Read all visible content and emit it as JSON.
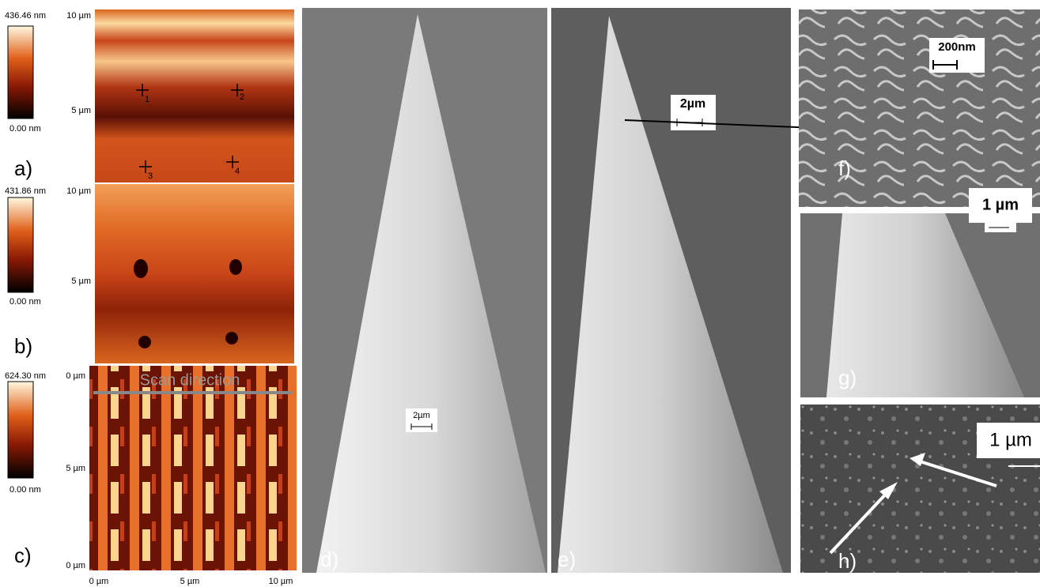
{
  "panels": [
    {
      "label": "a)",
      "colorbar_max": "436.46 nm",
      "colorbar_min": "0.00 nm",
      "y_ticks": [
        "10 µm",
        "5 µm"
      ],
      "markers": [
        "1",
        "2",
        "3",
        "4"
      ]
    },
    {
      "label": "b)",
      "colorbar_max": "431.86 nm",
      "colorbar_min": "0.00 nm",
      "y_ticks": [
        "10 µm",
        "5 µm"
      ]
    },
    {
      "label": "c)",
      "colorbar_max": "624.30 nm",
      "colorbar_min": "0.00 nm",
      "y_ticks": [
        "0 µm",
        "5 µm",
        "0 µm"
      ],
      "x_ticks": [
        "0 µm",
        "5 µm",
        "10 µm"
      ],
      "annotation": "Scan direction"
    },
    {
      "label": "d)",
      "scale_bar": "2µm"
    },
    {
      "label": "e)",
      "scale_bar": "2µm"
    },
    {
      "label": "f)",
      "scale_bar": "200nm"
    },
    {
      "label": "g)",
      "scale_bar": "1 µm"
    },
    {
      "label": "h)",
      "scale_bar": "1 µm"
    }
  ]
}
